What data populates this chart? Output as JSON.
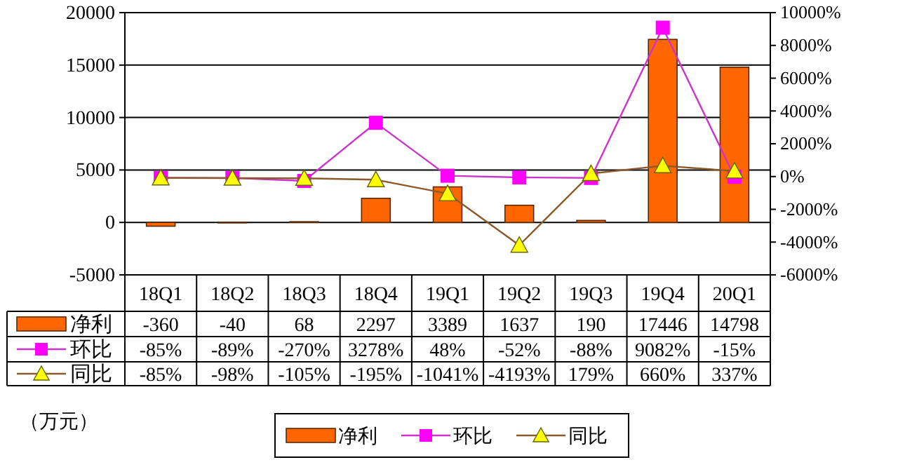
{
  "chart_data": {
    "type": "bar",
    "categories": [
      "18Q1",
      "18Q2",
      "18Q3",
      "18Q4",
      "19Q1",
      "19Q2",
      "19Q3",
      "19Q4",
      "20Q1"
    ],
    "series": [
      {
        "name": "净利",
        "color": "#ff6600",
        "values": [
          -360,
          -40,
          68,
          2297,
          3389,
          1637,
          190,
          17446,
          14798
        ],
        "value_labels": [
          "-360",
          "-40",
          "68",
          "2297",
          "3389",
          "1637",
          "190",
          "17446",
          "14798"
        ]
      },
      {
        "name": "环比",
        "type": "line",
        "axis": "y2",
        "color": "#cc33cc",
        "marker": "square",
        "values": [
          -85,
          -89,
          -270,
          3278,
          48,
          -52,
          -88,
          9082,
          -15
        ],
        "value_labels": [
          "-85%",
          "-89%",
          "-270%",
          "3278%",
          "48%",
          "-52%",
          "-88%",
          "9082%",
          "-15%"
        ]
      },
      {
        "name": "同比",
        "type": "line",
        "axis": "y2",
        "color": "#8b5a2b",
        "marker": "triangle",
        "values": [
          -85,
          -98,
          -105,
          -195,
          -1041,
          -4193,
          179,
          660,
          337
        ],
        "value_labels": [
          "-85%",
          "-98%",
          "-105%",
          "-195%",
          "-1041%",
          "-4193%",
          "179%",
          "660%",
          "337%"
        ]
      }
    ],
    "ylim": [
      -5000,
      20000
    ],
    "yticks": [
      -5000,
      0,
      5000,
      10000,
      15000,
      20000
    ],
    "y2lim": [
      -6000,
      10000
    ],
    "y2ticks": [
      {
        "value": -6000,
        "label": "-6000%"
      },
      {
        "value": -4000,
        "label": "-4000%"
      },
      {
        "value": -2000,
        "label": "-2000%"
      },
      {
        "value": 0,
        "label": "0%"
      },
      {
        "value": 2000,
        "label": "2000%"
      },
      {
        "value": 4000,
        "label": "4000%"
      },
      {
        "value": 6000,
        "label": "6000%"
      },
      {
        "value": 8000,
        "label": "8000%"
      },
      {
        "value": 10000,
        "label": "10000%"
      }
    ],
    "grid": "y",
    "legend": "bottom",
    "line_style": "solid",
    "annotations": [
      "（万元）"
    ]
  }
}
